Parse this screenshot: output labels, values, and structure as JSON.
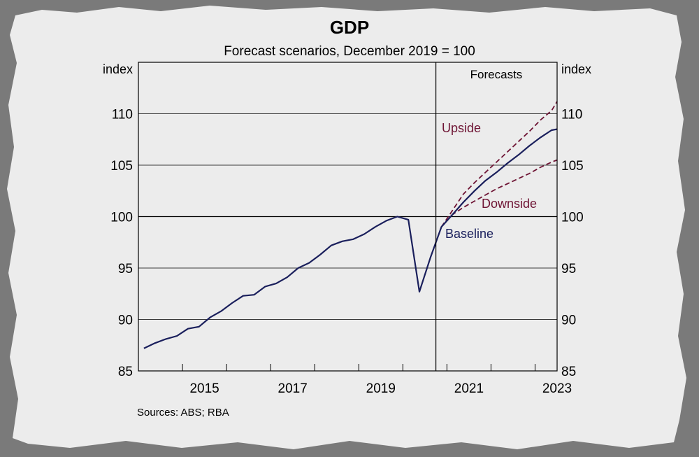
{
  "chart_data": {
    "type": "line",
    "title": "GDP",
    "subtitle": "Forecast scenarios, December 2019 = 100",
    "ylabel_left": "index",
    "ylabel_right": "index",
    "ylim": [
      85,
      115
    ],
    "yticks": [
      85,
      90,
      95,
      100,
      105,
      110
    ],
    "xlim": [
      2014.0,
      2023.5
    ],
    "xticks": [
      {
        "label": "2015",
        "x": 2015.0
      },
      {
        "label": "2017",
        "x": 2017.0
      },
      {
        "label": "2019",
        "x": 2019.0
      },
      {
        "label": "2021",
        "x": 2021.0
      },
      {
        "label": "2023",
        "x": 2023.0
      }
    ],
    "forecast_start": 2020.75,
    "forecast_label": "Forecasts",
    "source": "Sources: ABS; RBA",
    "colors": {
      "baseline": "#1a1f5c",
      "scenario": "#6e1434",
      "background": "#ececec",
      "frame": "#000000"
    },
    "series": [
      {
        "name": "Baseline",
        "style": "solid",
        "x": [
          2014.125,
          2014.375,
          2014.625,
          2014.875,
          2015.125,
          2015.375,
          2015.625,
          2015.875,
          2016.125,
          2016.375,
          2016.625,
          2016.875,
          2017.125,
          2017.375,
          2017.625,
          2017.875,
          2018.125,
          2018.375,
          2018.625,
          2018.875,
          2019.125,
          2019.375,
          2019.625,
          2019.875,
          2020.125,
          2020.375,
          2020.625,
          2020.875,
          2021.125,
          2021.375,
          2021.625,
          2021.875,
          2022.125,
          2022.375,
          2022.625,
          2022.875,
          2023.125,
          2023.375,
          2023.5
        ],
        "values": [
          87.2,
          87.7,
          88.1,
          88.4,
          89.1,
          89.3,
          90.2,
          90.8,
          91.6,
          92.3,
          92.4,
          93.2,
          93.5,
          94.1,
          95.0,
          95.5,
          96.3,
          97.2,
          97.6,
          97.8,
          98.3,
          99.0,
          99.6,
          100.0,
          99.7,
          92.7,
          96.0,
          99.0,
          100.2,
          101.4,
          102.5,
          103.5,
          104.3,
          105.2,
          106.0,
          106.9,
          107.7,
          108.4,
          108.5
        ]
      },
      {
        "name": "Upside",
        "style": "dashed",
        "x": [
          2020.875,
          2021.125,
          2021.375,
          2021.625,
          2021.875,
          2022.125,
          2022.375,
          2022.625,
          2022.875,
          2023.125,
          2023.375,
          2023.5
        ],
        "values": [
          99.0,
          100.6,
          102.2,
          103.3,
          104.3,
          105.3,
          106.3,
          107.3,
          108.3,
          109.4,
          110.3,
          111.2
        ]
      },
      {
        "name": "Downside",
        "style": "dashed",
        "x": [
          2020.875,
          2021.125,
          2021.375,
          2021.625,
          2021.875,
          2022.125,
          2022.375,
          2022.625,
          2022.875,
          2023.125,
          2023.375,
          2023.5
        ],
        "values": [
          99.0,
          100.2,
          100.9,
          101.5,
          102.1,
          102.7,
          103.2,
          103.7,
          104.2,
          104.8,
          105.3,
          105.5
        ]
      }
    ],
    "annotations": [
      {
        "text": "Upside",
        "series": "Upside"
      },
      {
        "text": "Downside",
        "series": "Downside"
      },
      {
        "text": "Baseline",
        "series": "Baseline"
      }
    ]
  }
}
